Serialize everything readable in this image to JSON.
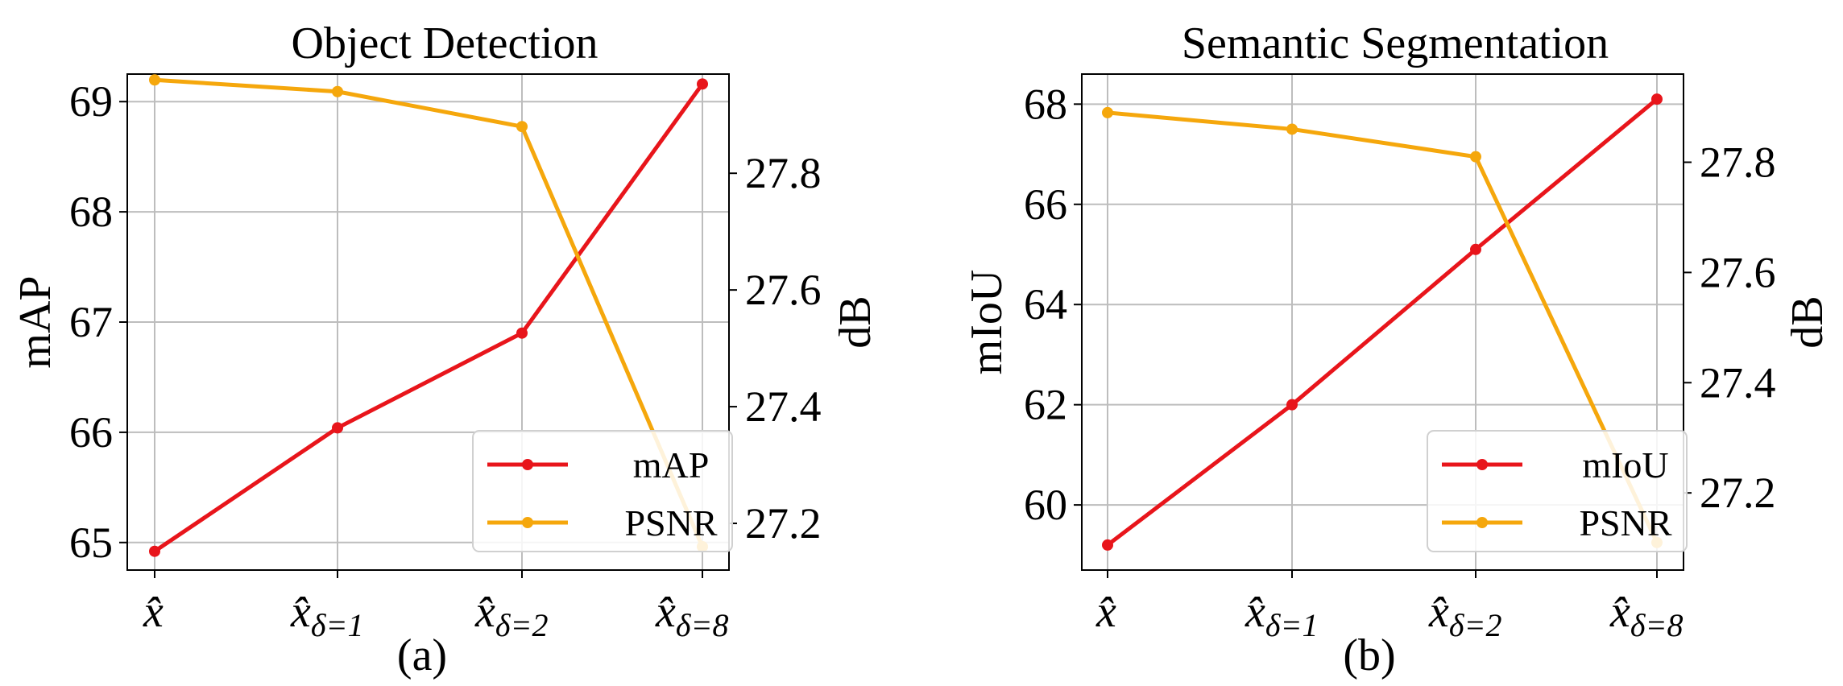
{
  "chart_data": [
    {
      "type": "line",
      "title": "Object Detection",
      "panel_label": "(a)",
      "categories": [
        "x̂",
        "x̂δ=1",
        "x̂δ=2",
        "x̂δ=8"
      ],
      "category_parts": [
        {
          "base": "x̂",
          "sub": ""
        },
        {
          "base": "x̂",
          "sub": "δ=1"
        },
        {
          "base": "x̂",
          "sub": "δ=2"
        },
        {
          "base": "x̂",
          "sub": "δ=8"
        }
      ],
      "ylabel": "mAP",
      "ylabel_right": "dB",
      "ylim": [
        64.75,
        69.25
      ],
      "yticks": [
        65,
        66,
        67,
        68,
        69
      ],
      "ylim_right": [
        27.12,
        27.97
      ],
      "yticks_right": [
        27.2,
        27.4,
        27.6,
        27.8
      ],
      "series": [
        {
          "name": "mAP",
          "axis": "left",
          "color": "#e8151b",
          "values": [
            64.92,
            66.04,
            66.9,
            69.16
          ]
        },
        {
          "name": "PSNR",
          "axis": "right",
          "color": "#f5a70c",
          "values": [
            27.96,
            27.94,
            27.88,
            27.16
          ]
        }
      ],
      "legend_position": "lower-right",
      "grid": true
    },
    {
      "type": "line",
      "title": "Semantic Segmentation",
      "panel_label": "(b)",
      "categories": [
        "x̂",
        "x̂δ=1",
        "x̂δ=2",
        "x̂δ=8"
      ],
      "category_parts": [
        {
          "base": "x̂",
          "sub": ""
        },
        {
          "base": "x̂",
          "sub": "δ=1"
        },
        {
          "base": "x̂",
          "sub": "δ=2"
        },
        {
          "base": "x̂",
          "sub": "δ=8"
        }
      ],
      "ylabel": "mIoU",
      "ylabel_right": "dB",
      "ylim": [
        58.7,
        68.6
      ],
      "yticks": [
        60,
        62,
        64,
        66,
        68
      ],
      "ylim_right": [
        27.06,
        27.96
      ],
      "yticks_right": [
        27.2,
        27.4,
        27.6,
        27.8
      ],
      "series": [
        {
          "name": "mIoU",
          "axis": "left",
          "color": "#e8151b",
          "values": [
            59.2,
            62.0,
            65.1,
            68.1
          ]
        },
        {
          "name": "PSNR",
          "axis": "right",
          "color": "#f5a70c",
          "values": [
            27.89,
            27.86,
            27.81,
            27.11
          ]
        }
      ],
      "legend_position": "lower-right",
      "grid": true
    }
  ]
}
